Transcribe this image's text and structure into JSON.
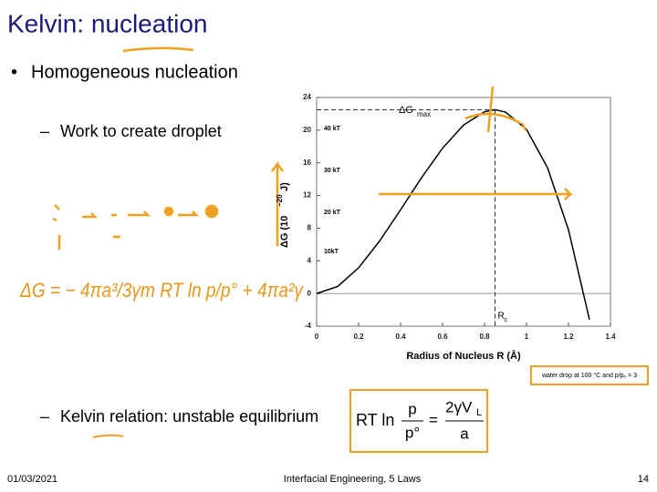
{
  "slide": {
    "title": "Kelvin: nucleation",
    "bullet": "Homogeneous nucleation",
    "sub_bullet_1": "Work to create droplet",
    "sub_bullet_2": "Kelvin relation: unstable equilibrium",
    "handwritten_equation": "ΔG = − 4πa³/3γm RT ln p/p° + 4πa²γ",
    "equation": {
      "lhs": "RT ln",
      "num_left": "p",
      "den_left": "p°",
      "num_right": "2γV",
      "num_right_sub": "L",
      "den_right": "a"
    },
    "footer": {
      "date": "01/03/2021",
      "center": "Interfacial Engineering, 5 Laws",
      "page": "14"
    }
  },
  "chart_data": {
    "type": "line",
    "x_label": "Radius of Nucleus  R   (Å)",
    "y_label": "ΔG  (10",
    "y_label_exp": "−20",
    "y_label_end": " J)",
    "caption": "water drop at 100 °C and p/pₒ = 3",
    "peak_label": "ΔG",
    "peak_label_sub": "max",
    "radius_label": "R",
    "radius_label_sub": "c",
    "kt_labels": [
      "40 kT",
      "30 kT",
      "20 kT",
      "10kT"
    ],
    "x": [
      0,
      0.1,
      0.2,
      0.3,
      0.4,
      0.5,
      0.6,
      0.7,
      0.8,
      0.85,
      0.9,
      1.0,
      1.1,
      1.2,
      1.3
    ],
    "series": [
      {
        "color": "#000000",
        "values": [
          0,
          0.86,
          3.15,
          6.43,
          10.25,
          14.19,
          17.79,
          20.63,
          22.25,
          22.5,
          22.21,
          20.1,
          15.4,
          7.8,
          -3.2
        ]
      }
    ],
    "peak_index": 9,
    "xlim": [
      0,
      1.4
    ],
    "ylim": [
      -4,
      24
    ],
    "xticks": [
      0,
      0.2,
      0.4,
      0.6,
      0.8,
      1,
      1.2,
      1.4
    ],
    "yticks": [
      -4,
      0,
      4,
      8,
      12,
      16,
      20,
      24
    ]
  }
}
